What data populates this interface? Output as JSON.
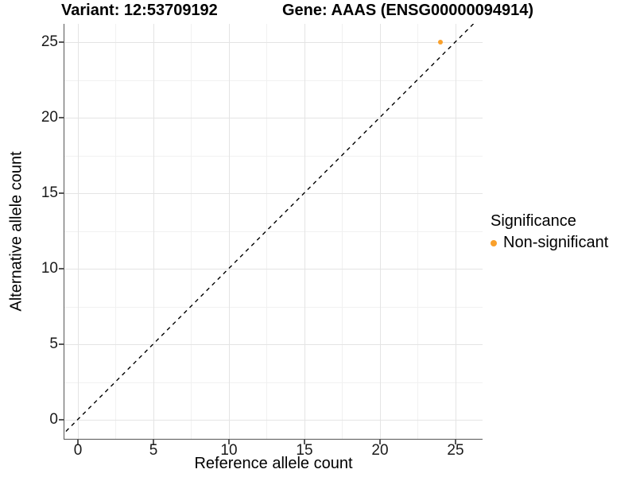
{
  "figure": {
    "title_left": "Variant: 12:53709192",
    "title_right": "Gene: AAAS (ENSG00000094914)"
  },
  "chart_data": {
    "type": "scatter",
    "title": "Variant: 12:53709192   Gene: AAAS (ENSG00000094914)",
    "xlabel": "Reference allele count",
    "ylabel": "Alternative allele count",
    "xticks": [
      0,
      5,
      10,
      15,
      20,
      25
    ],
    "yticks": [
      0,
      5,
      10,
      15,
      20,
      25
    ],
    "xlim": [
      -0.9,
      26.8
    ],
    "ylim": [
      -1.3,
      26.2
    ],
    "grid": "major and minor, light gray on white",
    "points": [
      {
        "x": 24,
        "y": 25,
        "series": "Non-significant"
      }
    ],
    "reference_line": {
      "type": "abline",
      "slope": 1,
      "intercept": 0,
      "style": "dashed",
      "color": "#000000"
    },
    "legend": {
      "title": "Significance",
      "position": "right",
      "entries": [
        {
          "label": "Non-significant",
          "color": "#F9A02B"
        }
      ]
    },
    "colors": {
      "point": "#F9A02B",
      "axis_line": "#565656",
      "grid_major": "#E4E4E4",
      "grid_minor": "#F1F1F1",
      "tick_label": "#1A1A1A"
    }
  }
}
